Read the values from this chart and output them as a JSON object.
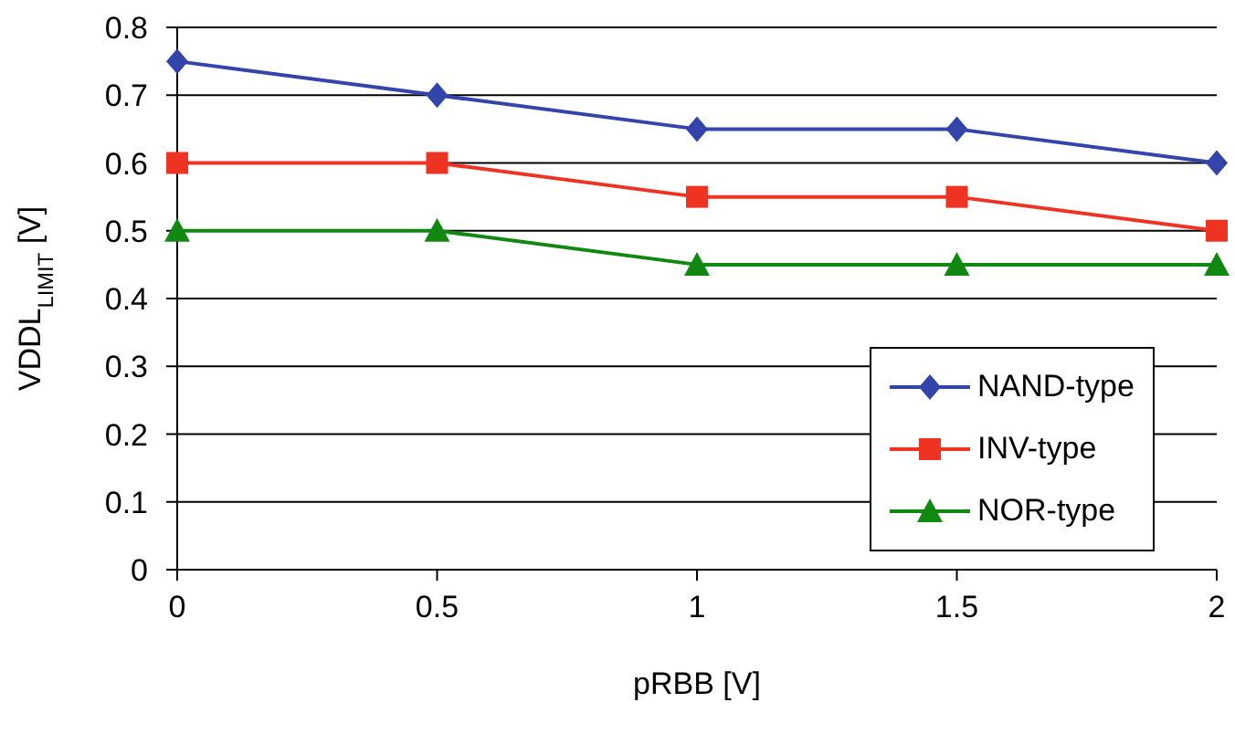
{
  "chart_data": {
    "type": "line",
    "xlabel": "pRBB [V]",
    "ylabel": "VDDL$_{LIMIT}$ [V]",
    "x": [
      0,
      0.5,
      1,
      1.5,
      2
    ],
    "series": [
      {
        "name": "NAND-type",
        "color": "#3344aa",
        "marker": "diamond",
        "values": [
          0.75,
          0.7,
          0.65,
          0.65,
          0.6
        ]
      },
      {
        "name": "INV-type",
        "color": "#ee3322",
        "marker": "square",
        "values": [
          0.6,
          0.6,
          0.55,
          0.55,
          0.5
        ]
      },
      {
        "name": "NOR-type",
        "color": "#118811",
        "marker": "triangle",
        "values": [
          0.5,
          0.5,
          0.45,
          0.45,
          0.45
        ]
      }
    ],
    "xlim": [
      0,
      2
    ],
    "xticks": [
      0,
      0.5,
      1,
      1.5,
      2
    ],
    "ylim": [
      0,
      0.8
    ],
    "yticks": [
      0,
      0.1,
      0.2,
      0.3,
      0.4,
      0.5,
      0.6,
      0.7,
      0.8
    ],
    "grid": "y",
    "legend": "bottom right",
    "line_style": "solid"
  }
}
